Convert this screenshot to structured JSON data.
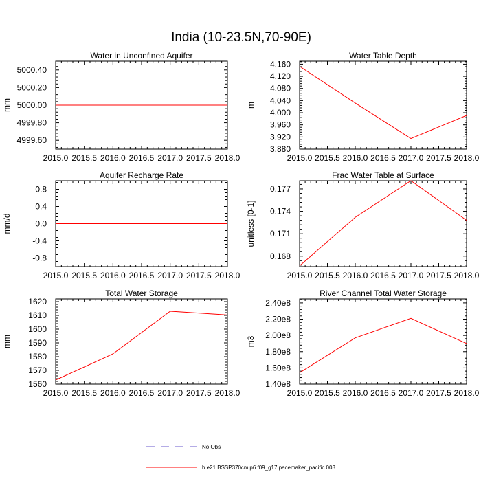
{
  "figure": {
    "title": "India (10-23.5N,70-90E)"
  },
  "colors": {
    "series": "#ff0000",
    "obs": "#6a5acd",
    "axes": "#000000"
  },
  "legend": {
    "placement": "bottom-center",
    "entries": [
      {
        "label": "No Obs",
        "style": "dashed",
        "color": "#6a5acd"
      },
      {
        "label": "b.e21.BSSP370cmip6.f09_g17.pacemaker_pacific.003",
        "style": "solid",
        "color": "#ff0000"
      }
    ]
  },
  "chart_data": [
    {
      "type": "line",
      "title": "Water in Unconfined Aquifer",
      "xlabel": "",
      "ylabel": "mm",
      "xlim": [
        2015.0,
        2018.0
      ],
      "ylim": [
        4999.5,
        5000.5
      ],
      "xticks": [
        "2015.0",
        "2015.5",
        "2016.0",
        "2016.5",
        "2017.0",
        "2017.5",
        "2018.0"
      ],
      "yticks": [
        "4999.60",
        "4999.80",
        "5000.00",
        "5000.20",
        "5000.40"
      ],
      "series": [
        {
          "x": [
            2015.0,
            2016.0,
            2017.0,
            2018.0
          ],
          "values": [
            5000.0,
            5000.0,
            5000.0,
            5000.0
          ]
        }
      ]
    },
    {
      "type": "line",
      "title": "Water Table Depth",
      "xlabel": "",
      "ylabel": "m",
      "xlim": [
        2015.0,
        2018.0
      ],
      "ylim": [
        3.88,
        4.17
      ],
      "xticks": [
        "2015.0",
        "2015.5",
        "2016.0",
        "2016.5",
        "2017.0",
        "2017.5",
        "2018.0"
      ],
      "yticks": [
        "3.880",
        "3.920",
        "3.960",
        "4.000",
        "4.040",
        "4.080",
        "4.120",
        "4.160"
      ],
      "series": [
        {
          "x": [
            2015.0,
            2016.0,
            2017.0,
            2018.0
          ],
          "values": [
            4.153,
            4.032,
            3.915,
            3.991
          ]
        }
      ]
    },
    {
      "type": "line",
      "title": "Aquifer Recharge Rate",
      "xlabel": "",
      "ylabel": "mm/d",
      "xlim": [
        2015.0,
        2018.0
      ],
      "ylim": [
        -1.0,
        1.0
      ],
      "xticks": [
        "2015.0",
        "2015.5",
        "2016.0",
        "2016.5",
        "2017.0",
        "2017.5",
        "2018.0"
      ],
      "yticks": [
        "-0.8",
        "-0.4",
        "0.0",
        "0.4",
        "0.8"
      ],
      "series": [
        {
          "x": [
            2015.0,
            2016.0,
            2017.0,
            2018.0
          ],
          "values": [
            0.0,
            0.0,
            0.0,
            0.0
          ]
        }
      ]
    },
    {
      "type": "line",
      "title": "Frac Water Table at Surface",
      "xlabel": "",
      "ylabel": "unitless [0-1]",
      "xlim": [
        2015.0,
        2018.0
      ],
      "ylim": [
        0.1666,
        0.1781
      ],
      "xticks": [
        "2015.0",
        "2015.5",
        "2016.0",
        "2016.5",
        "2017.0",
        "2017.5",
        "2018.0"
      ],
      "yticks": [
        "0.168",
        "0.171",
        "0.174",
        "0.177"
      ],
      "series": [
        {
          "x": [
            2015.0,
            2016.0,
            2017.0,
            2018.0
          ],
          "values": [
            0.1667,
            0.1732,
            0.1781,
            0.1728
          ]
        }
      ]
    },
    {
      "type": "line",
      "title": "Total Water Storage",
      "xlabel": "",
      "ylabel": "mm",
      "xlim": [
        2015.0,
        2018.0
      ],
      "ylim": [
        1560,
        1622
      ],
      "xticks": [
        "2015.0",
        "2015.5",
        "2016.0",
        "2016.5",
        "2017.0",
        "2017.5",
        "2018.0"
      ],
      "yticks": [
        "1560",
        "1570",
        "1580",
        "1590",
        "1600",
        "1610",
        "1620"
      ],
      "series": [
        {
          "x": [
            2015.0,
            2016.0,
            2017.0,
            2018.0
          ],
          "values": [
            1563.0,
            1582.0,
            1613.0,
            1610.3
          ]
        }
      ]
    },
    {
      "type": "line",
      "title": "River Channel Total Water Storage",
      "xlabel": "",
      "ylabel": "m3",
      "xlim": [
        2015.0,
        2018.0
      ],
      "ylim": [
        140000000.0,
        245000000.0
      ],
      "xticks": [
        "2015.0",
        "2015.5",
        "2016.0",
        "2016.5",
        "2017.0",
        "2017.5",
        "2018.0"
      ],
      "yticks": [
        "1.40e8",
        "1.60e8",
        "1.80e8",
        "2.00e8",
        "2.20e8",
        "2.40e8"
      ],
      "series": [
        {
          "x": [
            2015.0,
            2016.0,
            2017.0,
            2018.0
          ],
          "values": [
            154000000.0,
            197000000.0,
            221000000.0,
            190000000.0
          ]
        }
      ]
    }
  ]
}
